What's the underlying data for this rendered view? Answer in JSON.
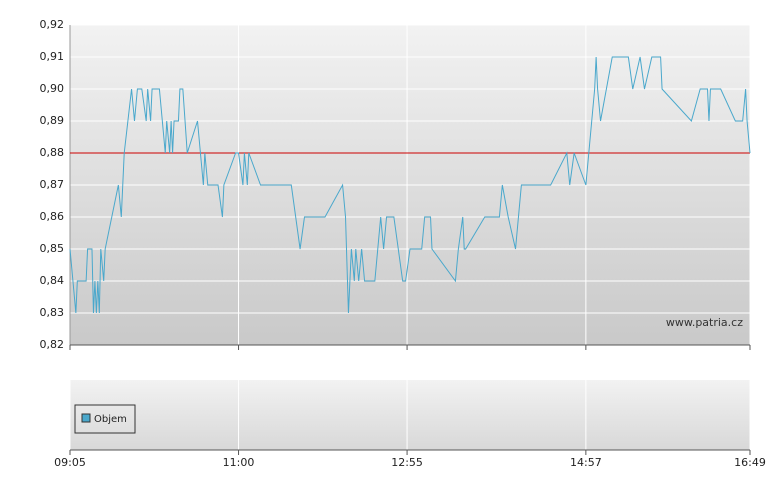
{
  "chart_data": {
    "type": "line",
    "x": [
      545,
      547,
      549,
      550,
      556,
      557,
      560,
      561,
      562,
      563,
      564,
      565,
      566,
      568,
      569,
      578,
      580,
      582,
      587,
      589,
      591,
      594,
      597,
      598,
      600,
      601,
      606,
      610,
      611,
      613,
      614,
      615,
      616,
      619,
      620,
      622,
      625,
      632,
      634,
      636,
      637,
      639,
      646,
      649,
      650,
      658,
      660,
      663,
      664,
      666,
      667,
      675,
      696,
      702,
      705,
      719,
      731,
      733,
      735,
      736,
      737,
      739,
      740,
      742,
      744,
      746,
      753,
      757,
      759,
      761,
      766,
      772,
      774,
      777,
      785,
      787,
      791,
      792,
      808,
      810,
      813,
      814,
      815,
      828,
      838,
      840,
      844,
      849,
      853,
      873,
      884,
      886,
      889,
      897,
      903,
      904,
      905,
      907,
      915,
      926,
      929,
      934,
      937,
      942,
      948,
      949,
      969,
      975,
      980,
      981,
      982,
      989,
      999,
      1004,
      1006,
      1007,
      1009
    ],
    "series": [
      {
        "color": "#4aa8cc",
        "values": [
          0.85,
          0.84,
          0.83,
          0.84,
          0.84,
          0.85,
          0.85,
          0.83,
          0.84,
          0.83,
          0.84,
          0.83,
          0.85,
          0.84,
          0.85,
          0.87,
          0.86,
          0.88,
          0.9,
          0.89,
          0.9,
          0.9,
          0.89,
          0.9,
          0.89,
          0.9,
          0.9,
          0.88,
          0.89,
          0.88,
          0.89,
          0.88,
          0.89,
          0.89,
          0.9,
          0.9,
          0.88,
          0.89,
          0.88,
          0.87,
          0.88,
          0.87,
          0.87,
          0.86,
          0.87,
          0.88,
          0.88,
          0.87,
          0.88,
          0.87,
          0.88,
          0.87,
          0.87,
          0.85,
          0.86,
          0.86,
          0.87,
          0.86,
          0.83,
          0.84,
          0.85,
          0.84,
          0.85,
          0.84,
          0.85,
          0.84,
          0.84,
          0.86,
          0.85,
          0.86,
          0.86,
          0.84,
          0.84,
          0.85,
          0.85,
          0.86,
          0.86,
          0.85,
          0.84,
          0.85,
          0.86,
          0.85,
          0.85,
          0.86,
          0.86,
          0.87,
          0.86,
          0.85,
          0.87,
          0.87,
          0.88,
          0.87,
          0.88,
          0.87,
          0.9,
          0.91,
          0.9,
          0.89,
          0.91,
          0.91,
          0.9,
          0.91,
          0.9,
          0.91,
          0.91,
          0.9,
          0.89,
          0.9,
          0.9,
          0.89,
          0.9,
          0.9,
          0.89,
          0.89,
          0.9,
          0.89,
          0.88
        ]
      }
    ],
    "reference_line": {
      "value": 0.88,
      "color": "#cc0000"
    },
    "xlim": [
      545,
      1009
    ],
    "xticks": [
      {
        "value": 545,
        "label": "09:05"
      },
      {
        "value": 660,
        "label": "11:00"
      },
      {
        "value": 775,
        "label": "12:55"
      },
      {
        "value": 897,
        "label": "14:57"
      },
      {
        "value": 1009,
        "label": "16:49"
      }
    ],
    "ylim": [
      0.82,
      0.92
    ],
    "yticks": [
      {
        "value": 0.82,
        "label": "0,82"
      },
      {
        "value": 0.83,
        "label": "0,83"
      },
      {
        "value": 0.84,
        "label": "0,84"
      },
      {
        "value": 0.85,
        "label": "0,85"
      },
      {
        "value": 0.86,
        "label": "0,86"
      },
      {
        "value": 0.87,
        "label": "0,87"
      },
      {
        "value": 0.88,
        "label": "0,88"
      },
      {
        "value": 0.89,
        "label": "0,89"
      },
      {
        "value": 0.9,
        "label": "0,90"
      },
      {
        "value": 0.91,
        "label": "0,91"
      },
      {
        "value": 0.92,
        "label": "0,92"
      }
    ],
    "grid": true,
    "watermark": "www.patria.cz",
    "volume_legend": {
      "name": "Objem",
      "color": "#4aa8cc"
    }
  }
}
